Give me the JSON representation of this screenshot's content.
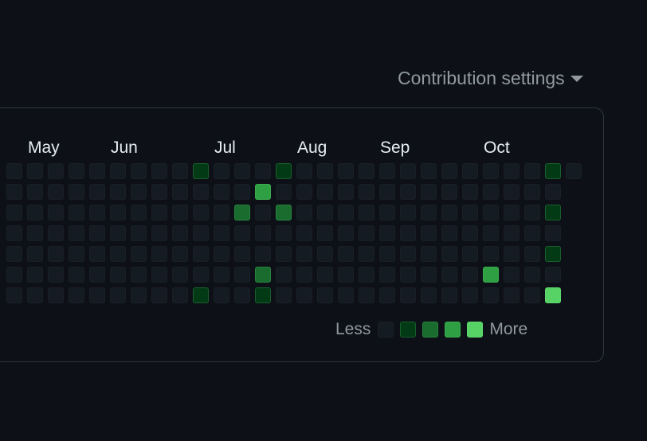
{
  "header": {
    "settings_label": "Contribution settings",
    "settings_icon": "triangle-down-icon"
  },
  "graph": {
    "months": [
      {
        "label": "May",
        "week": 1
      },
      {
        "label": "Jun",
        "week": 5
      },
      {
        "label": "Jul",
        "week": 10
      },
      {
        "label": "Aug",
        "week": 14
      },
      {
        "label": "Sep",
        "week": 18
      },
      {
        "label": "Oct",
        "week": 23
      }
    ],
    "weeks": [
      [
        0,
        0,
        0,
        0,
        0,
        0,
        0
      ],
      [
        0,
        0,
        0,
        0,
        0,
        0,
        0
      ],
      [
        0,
        0,
        0,
        0,
        0,
        0,
        0
      ],
      [
        0,
        0,
        0,
        0,
        0,
        0,
        0
      ],
      [
        0,
        0,
        0,
        0,
        0,
        0,
        0
      ],
      [
        0,
        0,
        0,
        0,
        0,
        0,
        0
      ],
      [
        0,
        0,
        0,
        0,
        0,
        0,
        0
      ],
      [
        0,
        0,
        0,
        0,
        0,
        0,
        0
      ],
      [
        0,
        0,
        0,
        0,
        0,
        0,
        0
      ],
      [
        1,
        0,
        0,
        0,
        0,
        0,
        1
      ],
      [
        0,
        0,
        0,
        0,
        0,
        0,
        0
      ],
      [
        0,
        0,
        2,
        0,
        0,
        0,
        0
      ],
      [
        0,
        3,
        0,
        0,
        0,
        2,
        1
      ],
      [
        1,
        0,
        2,
        0,
        0,
        0,
        0
      ],
      [
        0,
        0,
        0,
        0,
        0,
        0,
        0
      ],
      [
        0,
        0,
        0,
        0,
        0,
        0,
        0
      ],
      [
        0,
        0,
        0,
        0,
        0,
        0,
        0
      ],
      [
        0,
        0,
        0,
        0,
        0,
        0,
        0
      ],
      [
        0,
        0,
        0,
        0,
        0,
        0,
        0
      ],
      [
        0,
        0,
        0,
        0,
        0,
        0,
        0
      ],
      [
        0,
        0,
        0,
        0,
        0,
        0,
        0
      ],
      [
        0,
        0,
        0,
        0,
        0,
        0,
        0
      ],
      [
        0,
        0,
        0,
        0,
        0,
        0,
        0
      ],
      [
        0,
        0,
        0,
        0,
        0,
        3,
        0
      ],
      [
        0,
        0,
        0,
        0,
        0,
        0,
        0
      ],
      [
        0,
        0,
        0,
        0,
        0,
        0,
        0
      ],
      [
        1,
        0,
        1,
        0,
        1,
        0,
        4
      ],
      [
        0
      ]
    ]
  },
  "legend": {
    "less_label": "Less",
    "more_label": "More",
    "levels": [
      0,
      1,
      2,
      3,
      4
    ]
  },
  "colors": {
    "background": "#0d1117",
    "panel_border": "#30363d",
    "muted_text": "#9198a1",
    "month_text": "#e6edf3",
    "level_0": "#151b23",
    "level_1": "#033a16",
    "level_2": "#196c2e",
    "level_3": "#2ea043",
    "level_4": "#56d364"
  }
}
